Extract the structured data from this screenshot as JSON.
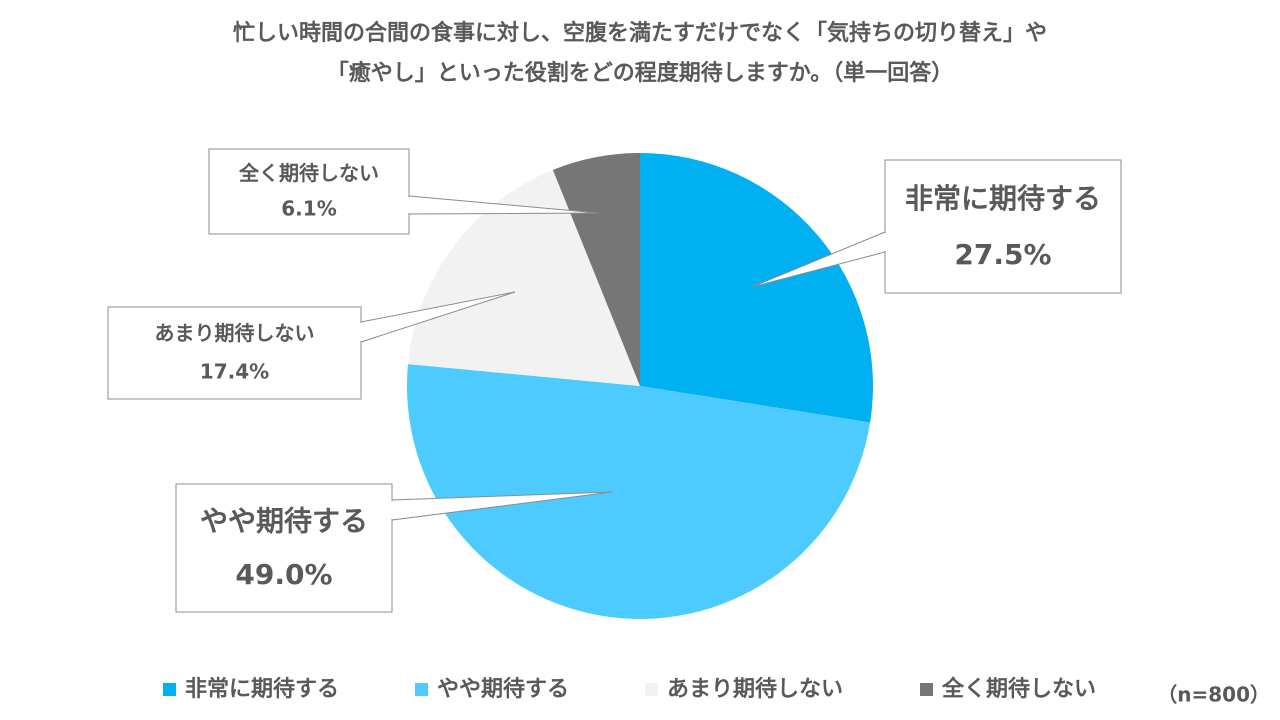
{
  "chart_data": {
    "type": "pie",
    "title": "忙しい時間の合間の食事に対し、空腹を満たすだけでなく「気持ちの切り替え」や\n「癒やし」といった役割をどの程度期待しますか。（単一回答）",
    "categories": [
      "非常に期待する",
      "やや期待する",
      "あまり期待しない",
      "全く期待しない"
    ],
    "values": [
      27.5,
      49.0,
      17.4,
      6.1
    ],
    "value_labels": [
      "27.5%",
      "49.0%",
      "17.4%",
      "6.1%"
    ],
    "colors": [
      "#00b0f0",
      "#4dcbff",
      "#f2f2f2",
      "#767676"
    ],
    "legend": "bottom",
    "note": "（n=800）"
  }
}
